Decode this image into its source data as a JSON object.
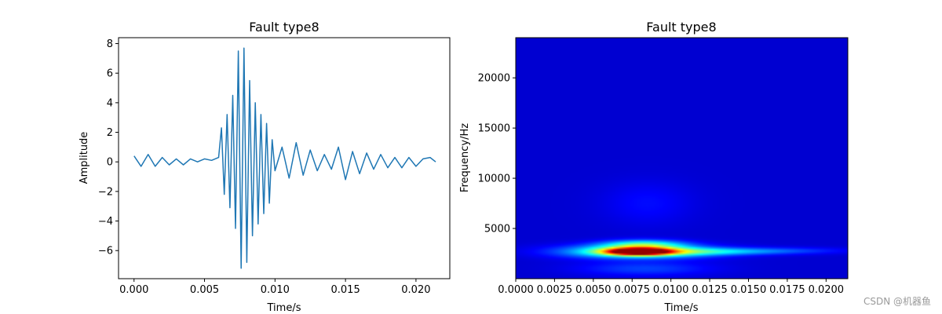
{
  "watermark": "CSDN @机器鱼",
  "chart_data": [
    {
      "type": "line",
      "title": "Fault type8",
      "xlabel": "Time/s",
      "ylabel": "Amplitude",
      "xlim": [
        -0.0011,
        0.0224
      ],
      "ylim": [
        -7.9,
        8.4
      ],
      "xticks": [
        0.0,
        0.005,
        0.01,
        0.015,
        0.02
      ],
      "xtick_labels": [
        "0.000",
        "0.005",
        "0.010",
        "0.015",
        "0.020"
      ],
      "yticks": [
        -6,
        -4,
        -2,
        0,
        2,
        4,
        6,
        8
      ],
      "ytick_labels": [
        "−6",
        "−4",
        "−2",
        "0",
        "2",
        "4",
        "6",
        "8"
      ],
      "series": [
        {
          "color": "#1f77b4",
          "x": [
            0.0,
            0.0005,
            0.001,
            0.0015,
            0.002,
            0.0025,
            0.003,
            0.0035,
            0.004,
            0.0045,
            0.005,
            0.0055,
            0.006,
            0.0062,
            0.0064,
            0.0066,
            0.0068,
            0.007,
            0.0072,
            0.0074,
            0.0076,
            0.0078,
            0.008,
            0.0082,
            0.0084,
            0.0086,
            0.0088,
            0.009,
            0.0092,
            0.0094,
            0.0096,
            0.0098,
            0.01,
            0.0105,
            0.011,
            0.0115,
            0.012,
            0.0125,
            0.013,
            0.0135,
            0.014,
            0.0145,
            0.015,
            0.0155,
            0.016,
            0.0165,
            0.017,
            0.0175,
            0.018,
            0.0185,
            0.019,
            0.0195,
            0.02,
            0.0205,
            0.021,
            0.0214
          ],
          "y": [
            0.4,
            -0.3,
            0.5,
            -0.3,
            0.3,
            -0.2,
            0.2,
            -0.2,
            0.2,
            0.0,
            0.2,
            0.1,
            0.3,
            2.3,
            -2.2,
            3.2,
            -3.1,
            4.5,
            -4.5,
            7.5,
            -7.2,
            7.7,
            -6.8,
            5.5,
            -5.0,
            4.0,
            -4.2,
            3.2,
            -3.5,
            2.6,
            -2.8,
            1.5,
            -0.6,
            1.0,
            -1.1,
            1.3,
            -0.9,
            0.8,
            -0.6,
            0.5,
            -0.5,
            1.0,
            -1.2,
            0.7,
            -0.8,
            0.6,
            -0.5,
            0.5,
            -0.4,
            0.3,
            -0.4,
            0.3,
            -0.3,
            0.2,
            0.3,
            0.0
          ]
        }
      ]
    },
    {
      "type": "heatmap",
      "title": "Fault type8",
      "xlabel": "Time/s",
      "ylabel": "Frequency/Hz",
      "xlim": [
        0.0,
        0.0214
      ],
      "ylim": [
        0,
        24000
      ],
      "colormap": "jet",
      "xticks": [
        0.0,
        0.0025,
        0.005,
        0.0075,
        0.01,
        0.0125,
        0.015,
        0.0175,
        0.02
      ],
      "xtick_labels": [
        "0.0000",
        "0.0025",
        "0.0050",
        "0.0075",
        "0.0100",
        "0.0125",
        "0.0150",
        "0.0175",
        "0.0200"
      ],
      "yticks": [
        5000,
        10000,
        15000,
        20000
      ],
      "ytick_labels": [
        "5000",
        "10000",
        "15000",
        "20000"
      ],
      "blobs": [
        {
          "t": 0.0079,
          "f": 2700,
          "sigma_t": 0.0014,
          "sigma_f": 240,
          "intensity": 1.0
        },
        {
          "t": 0.0079,
          "f": 2700,
          "sigma_t": 0.0032,
          "sigma_f": 450,
          "intensity": 0.5
        },
        {
          "t": 0.0082,
          "f": 3400,
          "sigma_t": 0.0018,
          "sigma_f": 320,
          "intensity": 0.35
        },
        {
          "t": 0.0125,
          "f": 2700,
          "sigma_t": 0.0035,
          "sigma_f": 250,
          "intensity": 0.22
        },
        {
          "t": 0.0175,
          "f": 2800,
          "sigma_t": 0.003,
          "sigma_f": 220,
          "intensity": 0.08
        },
        {
          "t": 0.0083,
          "f": 1000,
          "sigma_t": 0.003,
          "sigma_f": 500,
          "intensity": 0.12
        },
        {
          "t": 0.0085,
          "f": 7500,
          "sigma_t": 0.002,
          "sigma_f": 1500,
          "intensity": 0.06
        }
      ]
    }
  ]
}
